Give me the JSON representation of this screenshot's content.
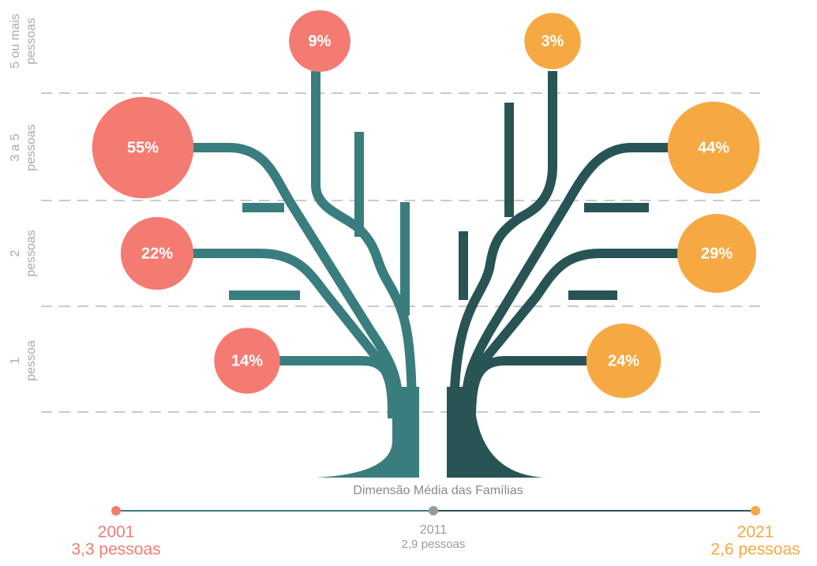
{
  "chart_data": {
    "type": "bubble-tree",
    "categories": [
      [
        "1",
        "pessoa"
      ],
      [
        "2",
        "pessoas"
      ],
      [
        "3 a 5",
        "pessoas"
      ],
      [
        "5 ou mais",
        "pessoas"
      ]
    ],
    "series": [
      {
        "name": "2001",
        "subtitle": "3,3 pessoas",
        "color": "#f47b72",
        "values": [
          14,
          22,
          55,
          9
        ],
        "value_labels": [
          "14%",
          "22%",
          "55%",
          "9%"
        ]
      },
      {
        "name": "2021",
        "subtitle": "2,6 pessoas",
        "color": "#f6a842",
        "values": [
          24,
          29,
          44,
          3
        ],
        "value_labels": [
          "24%",
          "29%",
          "44%",
          "3%"
        ]
      }
    ],
    "timeline_title": "Dimensão Média das Famílias",
    "midpoint": {
      "name": "2011",
      "subtitle": "2,9 pessoas",
      "color": "#9a9a9a"
    }
  }
}
